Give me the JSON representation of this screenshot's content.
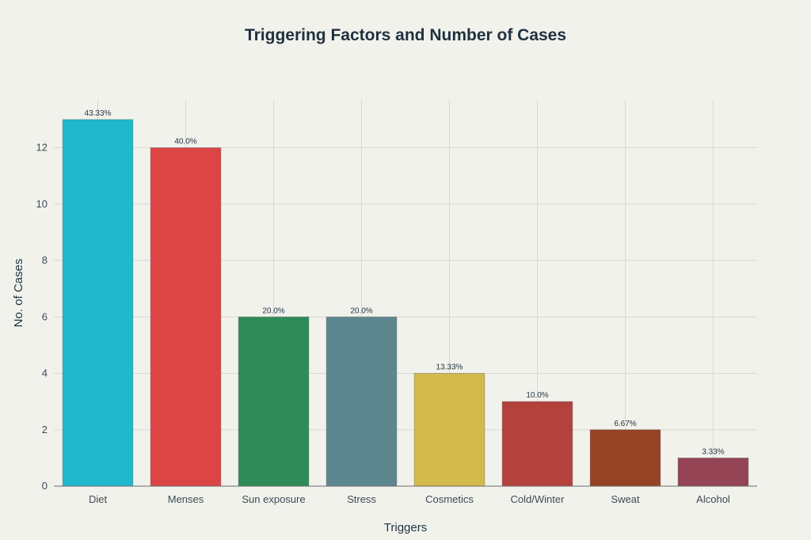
{
  "chart_data": {
    "type": "bar",
    "title": "Triggering Factors and Number of Cases",
    "xlabel": "Triggers",
    "ylabel": "No. of Cases",
    "categories": [
      "Diet",
      "Menses",
      "Sun exposure",
      "Stress",
      "Cosmetics",
      "Cold/Winter",
      "Sweat",
      "Alcohol"
    ],
    "values": [
      13,
      12,
      6,
      6,
      4,
      3,
      2,
      1
    ],
    "data_labels": [
      "43.33%",
      "40.0%",
      "20.0%",
      "20.0%",
      "13.33%",
      "10.0%",
      "6.67%",
      "3.33%"
    ],
    "colors": [
      "#1fb8cd",
      "#db4545",
      "#2e8b57",
      "#5d878f",
      "#d2ba4c",
      "#b4413c",
      "#964325",
      "#944454"
    ],
    "yticks": [
      0,
      2,
      4,
      6,
      8,
      10,
      12
    ],
    "ylim": [
      0,
      13.7
    ],
    "grid": true,
    "legend": false
  }
}
